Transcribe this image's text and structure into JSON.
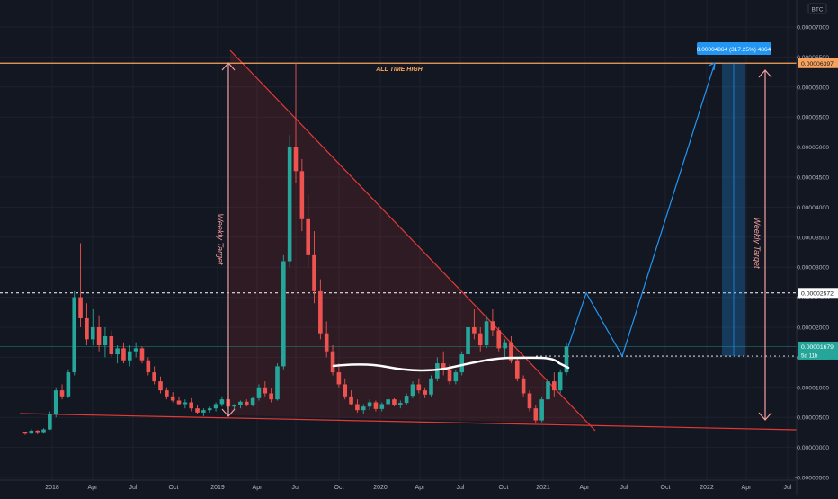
{
  "currency_badge": "BTC",
  "chart_data": {
    "type": "candlestick",
    "title": "",
    "y_axis": {
      "ticks": [
        "0.00007000",
        "0.00006500",
        "0.00006000",
        "0.00005500",
        "0.00005000",
        "0.00004500",
        "0.00004000",
        "0.00003500",
        "0.00003000",
        "0.00002500",
        "0.00002000",
        "0.00001500",
        "0.00001000",
        "0.00000500",
        "0.00000000",
        "-0.00000500"
      ],
      "ylim": [
        -5e-06,
        7.3e-05
      ]
    },
    "x_axis": {
      "ticks": [
        "2018",
        "Apr",
        "Jul",
        "Oct",
        "2019",
        "Apr",
        "Jul",
        "Oct",
        "2020",
        "Apr",
        "Jul",
        "Oct",
        "2021",
        "Apr",
        "Jul",
        "Oct",
        "2022",
        "Apr",
        "Jul"
      ]
    },
    "price_labels": {
      "ath": "0.00006397",
      "resistance": "0.00002572",
      "current": "0.00001679",
      "countdown": "5d 11h"
    },
    "measure_label": "0.00004864 (317.25%) 4864",
    "annotations": {
      "ath": "ALL TIME HIGH",
      "weekly_target_left": "Weekly Target",
      "weekly_target_right": "Weekly Target"
    },
    "levels": {
      "ath": 6.397e-05,
      "resistance": 2.572e-05,
      "current": 1.679e-05
    },
    "colors": {
      "up": "#26a69a",
      "down": "#ef5350",
      "ath_line": "#f7a35c",
      "projection": "#2196f3",
      "trendline": "#e53935",
      "target": "#f7a0a0"
    },
    "series_candles": [
      [
        2.5e-06,
        2.6e-06,
        2.1e-06,
        2.3e-06
      ],
      [
        2.3e-06,
        3.1e-06,
        2.2e-06,
        2.8e-06
      ],
      [
        2.8e-06,
        2.9e-06,
        2.2e-06,
        2.4e-06
      ],
      [
        2.4e-06,
        3.2e-06,
        2.3e-06,
        3e-06
      ],
      [
        3e-06,
        6e-06,
        2.9e-06,
        5.5e-06
      ],
      [
        5.5e-06,
        1e-05,
        5e-06,
        9.5e-06
      ],
      [
        9.5e-06,
        1.05e-05,
        8e-06,
        8.5e-06
      ],
      [
        8.5e-06,
        1.3e-05,
        8.2e-06,
        1.25e-05
      ],
      [
        1.25e-05,
        2.6e-05,
        1.2e-05,
        2.5e-05
      ],
      [
        2.5e-05,
        3.4e-05,
        2e-05,
        2.15e-05
      ],
      [
        2.15e-05,
        2.4e-05,
        1.7e-05,
        1.8e-05
      ],
      [
        1.8e-05,
        2.3e-05,
        1.7e-05,
        2e-05
      ],
      [
        2e-05,
        2.2e-05,
        1.6e-05,
        1.7e-05
      ],
      [
        1.7e-05,
        2e-05,
        1.5e-05,
        1.85e-05
      ],
      [
        1.85e-05,
        1.95e-05,
        1.5e-05,
        1.55e-05
      ],
      [
        1.55e-05,
        1.7e-05,
        1.4e-05,
        1.65e-05
      ],
      [
        1.65e-05,
        1.75e-05,
        1.4e-05,
        1.45e-05
      ],
      [
        1.45e-05,
        1.7e-05,
        1.35e-05,
        1.6e-05
      ],
      [
        1.6e-05,
        1.75e-05,
        1.5e-05,
        1.65e-05
      ],
      [
        1.65e-05,
        1.68e-05,
        1.4e-05,
        1.45e-05
      ],
      [
        1.45e-05,
        1.5e-05,
        1.2e-05,
        1.25e-05
      ],
      [
        1.25e-05,
        1.35e-05,
        1.05e-05,
        1.1e-05
      ],
      [
        1.1e-05,
        1.18e-05,
        9e-06,
        9.5e-06
      ],
      [
        9.5e-06,
        1e-05,
        8e-06,
        8.5e-06
      ],
      [
        8.5e-06,
        9.2e-06,
        7.5e-06,
        7.8e-06
      ],
      [
        7.8e-06,
        8.5e-06,
        7e-06,
        7.2e-06
      ],
      [
        7.2e-06,
        8e-06,
        6.5e-06,
        7.5e-06
      ],
      [
        7.5e-06,
        8.2e-06,
        6e-06,
        6.5e-06
      ],
      [
        6.5e-06,
        7e-06,
        5.5e-06,
        5.8e-06
      ],
      [
        5.8e-06,
        6.5e-06,
        5.2e-06,
        6.2e-06
      ],
      [
        6.2e-06,
        6.8e-06,
        5.8e-06,
        6.5e-06
      ],
      [
        6.5e-06,
        7.5e-06,
        6e-06,
        7.2e-06
      ],
      [
        7.2e-06,
        8.5e-06,
        6.8e-06,
        8e-06
      ],
      [
        8e-06,
        8.2e-06,
        6.5e-06,
        6.8e-06
      ],
      [
        6.8e-06,
        7.2e-06,
        6.2e-06,
        7e-06
      ],
      [
        7e-06,
        7.8e-06,
        6.5e-06,
        7.6e-06
      ],
      [
        7.6e-06,
        8e-06,
        6.8e-06,
        7e-06
      ],
      [
        7e-06,
        8.5e-06,
        6.8e-06,
        8.2e-06
      ],
      [
        8.2e-06,
        1.05e-05,
        7.8e-06,
        1e-05
      ],
      [
        1e-05,
        1.1e-05,
        8.5e-06,
        9e-06
      ],
      [
        9e-06,
        9.8e-06,
        7.5e-06,
        8e-06
      ],
      [
        8e-06,
        1.4e-05,
        7.8e-06,
        1.35e-05
      ],
      [
        1.35e-05,
        3.2e-05,
        1.3e-05,
        3.1e-05
      ],
      [
        3.1e-05,
        5.2e-05,
        3e-05,
        5e-05
      ],
      [
        5e-05,
        6.4e-05,
        4.4e-05,
        4.6e-05
      ],
      [
        4.6e-05,
        4.8e-05,
        3.6e-05,
        3.8e-05
      ],
      [
        3.8e-05,
        4.2e-05,
        3e-05,
        3.2e-05
      ],
      [
        3.2e-05,
        3.6e-05,
        2.4e-05,
        2.6e-05
      ],
      [
        2.6e-05,
        2.8e-05,
        1.8e-05,
        1.9e-05
      ],
      [
        1.9e-05,
        2.1e-05,
        1.5e-05,
        1.6e-05
      ],
      [
        1.6e-05,
        1.7e-05,
        1.2e-05,
        1.25e-05
      ],
      [
        1.25e-05,
        1.4e-05,
        1e-05,
        1.05e-05
      ],
      [
        1.05e-05,
        1.15e-05,
        8e-06,
        8.5e-06
      ],
      [
        8.5e-06,
        9.5e-06,
        7e-06,
        7.2e-06
      ],
      [
        7.2e-06,
        8e-06,
        5.8e-06,
        6.2e-06
      ],
      [
        6.2e-06,
        7.2e-06,
        5.5e-06,
        6.8e-06
      ],
      [
        6.8e-06,
        8e-06,
        6.2e-06,
        7.5e-06
      ],
      [
        7.5e-06,
        7.8e-06,
        6e-06,
        6.4e-06
      ],
      [
        6.4e-06,
        7.5e-06,
        6e-06,
        7.2e-06
      ],
      [
        7.2e-06,
        8.5e-06,
        6.8e-06,
        8e-06
      ],
      [
        8e-06,
        8.2e-06,
        6.8e-06,
        7e-06
      ],
      [
        7e-06,
        7.8e-06,
        6.5e-06,
        7.4e-06
      ],
      [
        7.4e-06,
        9e-06,
        7e-06,
        8.6e-06
      ],
      [
        8.6e-06,
        1.1e-05,
        8.2e-06,
        1.05e-05
      ],
      [
        1.05e-05,
        1.15e-05,
        9e-06,
        9.5e-06
      ],
      [
        9.5e-06,
        1e-05,
        8.2e-06,
        8.8e-06
      ],
      [
        8.8e-06,
        1.2e-05,
        8.5e-06,
        1.15e-05
      ],
      [
        1.15e-05,
        1.5e-05,
        1.1e-05,
        1.4e-05
      ],
      [
        1.4e-05,
        1.6e-05,
        1.2e-05,
        1.3e-05
      ],
      [
        1.3e-05,
        1.38e-05,
        1.05e-05,
        1.1e-05
      ],
      [
        1.1e-05,
        1.3e-05,
        1.05e-05,
        1.25e-05
      ],
      [
        1.25e-05,
        1.6e-05,
        1.2e-05,
        1.55e-05
      ],
      [
        1.55e-05,
        2.1e-05,
        1.5e-05,
        2e-05
      ],
      [
        2e-05,
        2.3e-05,
        1.8e-05,
        1.9e-05
      ],
      [
        1.9e-05,
        2e-05,
        1.6e-05,
        1.7e-05
      ],
      [
        1.7e-05,
        2.2e-05,
        1.65e-05,
        2.1e-05
      ],
      [
        2.1e-05,
        2.3e-05,
        1.85e-05,
        1.95e-05
      ],
      [
        1.95e-05,
        2e-05,
        1.6e-05,
        1.65e-05
      ],
      [
        1.65e-05,
        1.8e-05,
        1.5e-05,
        1.75e-05
      ],
      [
        1.75e-05,
        1.85e-05,
        1.4e-05,
        1.45e-05
      ],
      [
        1.45e-05,
        1.5e-05,
        1.1e-05,
        1.15e-05
      ],
      [
        1.15e-05,
        1.2e-05,
        8.5e-06,
        9e-06
      ],
      [
        9e-06,
        9.5e-06,
        6e-06,
        6.5e-06
      ],
      [
        6.5e-06,
        7e-06,
        4e-06,
        4.5e-06
      ],
      [
        4.5e-06,
        8.5e-06,
        4.2e-06,
        8e-06
      ],
      [
        8e-06,
        1.15e-05,
        7.5e-06,
        1.1e-05
      ],
      [
        1.1e-05,
        1.25e-05,
        8.5e-06,
        9.5e-06
      ],
      [
        9.5e-06,
        1.3e-05,
        9e-06,
        1.25e-05
      ],
      [
        1.25e-05,
        1.75e-05,
        1.2e-05,
        1.68e-05
      ]
    ]
  }
}
